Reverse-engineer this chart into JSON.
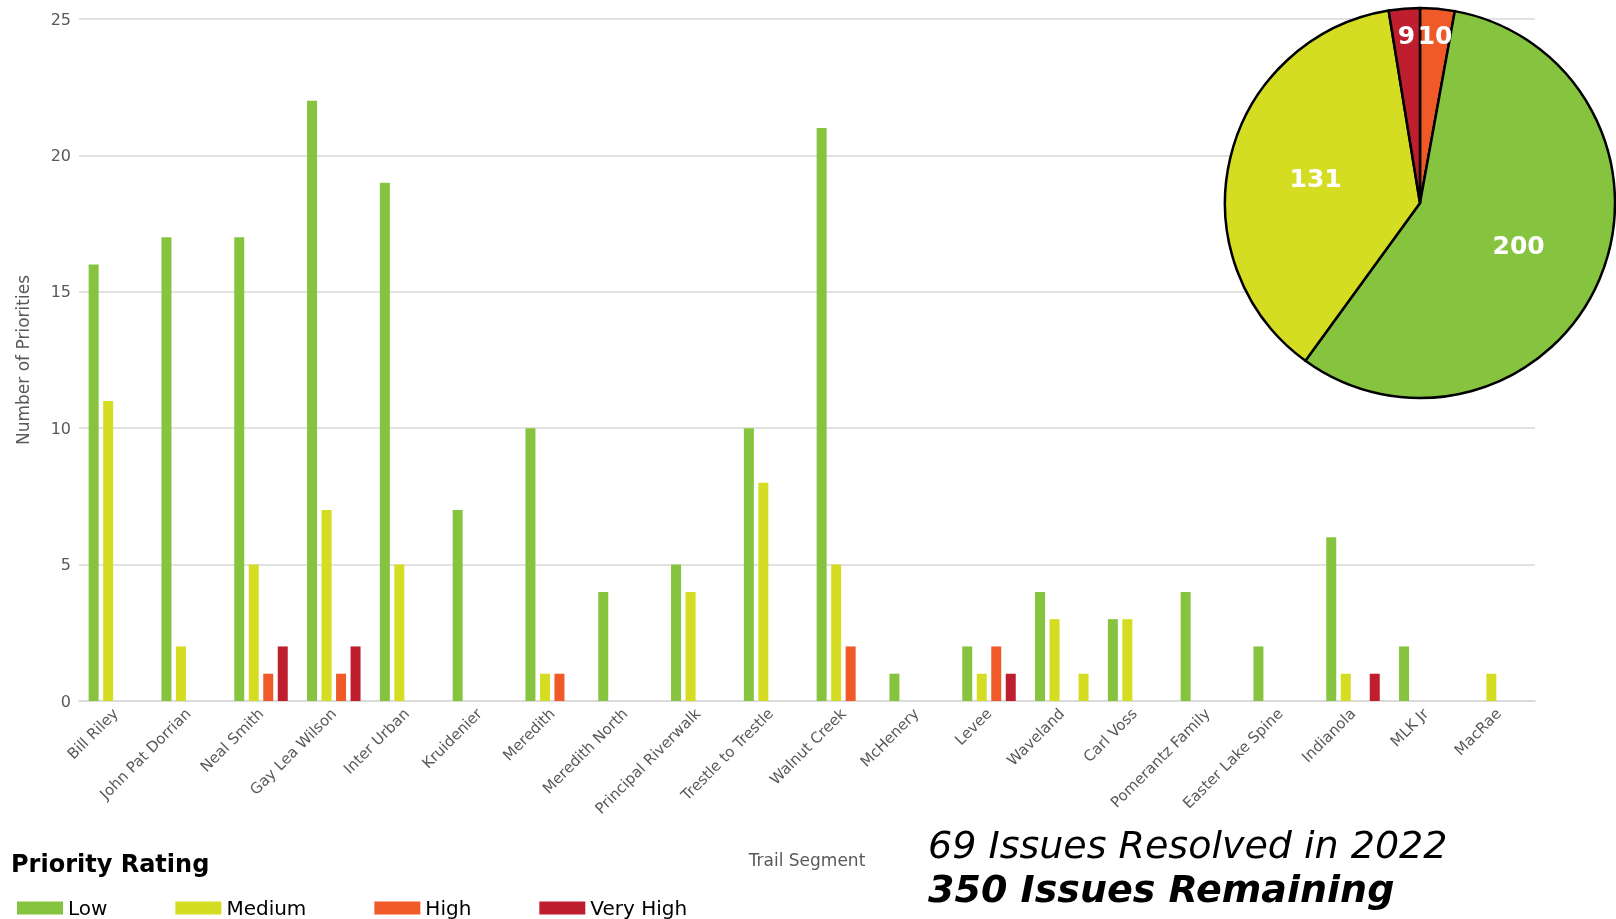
{
  "chart_data": [
    {
      "type": "bar",
      "xlabel": "Trail Segment",
      "ylabel": "Number of Priorities",
      "legend_title": "Priority Rating",
      "legend": "bottom left",
      "grid": "y",
      "ylim": [
        0,
        25
      ],
      "yticks": [
        0,
        5,
        10,
        15,
        20,
        25
      ],
      "categories": [
        "Bill Riley",
        "John Pat Dorrian",
        "Neal Smith",
        "Gay Lea Wilson",
        "Inter Urban",
        "Kruidenier",
        "Meredith",
        "Meredith North",
        "Principal Riverwalk",
        "Trestle to Trestle",
        "Walnut Creek",
        "McHenery",
        "Levee",
        "Waveland",
        "Carl Voss",
        "Pomerantz Family",
        "Easter Lake Spine",
        "Indianola",
        "MLK Jr",
        "MacRae"
      ],
      "series": [
        {
          "name": "Low",
          "color": "#86c440",
          "values": [
            16,
            17,
            17,
            22,
            19,
            7,
            10,
            4,
            5,
            10,
            21,
            1,
            2,
            4,
            3,
            4,
            2,
            6,
            2,
            0
          ]
        },
        {
          "name": "Medium",
          "color": "#d5dd23",
          "values": [
            11,
            2,
            5,
            7,
            5,
            0,
            1,
            0,
            4,
            8,
            5,
            0,
            1,
            3,
            3,
            0,
            0,
            1,
            0,
            1
          ]
        },
        {
          "name": "High",
          "color": "#f05a28",
          "values": [
            0,
            0,
            1,
            1,
            0,
            0,
            1,
            0,
            0,
            0,
            2,
            0,
            2,
            0,
            0,
            0,
            0,
            0,
            0,
            0
          ]
        },
        {
          "name": "Very High",
          "color": "#be1e2d",
          "values": [
            0,
            0,
            2,
            2,
            0,
            0,
            0,
            0,
            0,
            0,
            0,
            0,
            1,
            1,
            0,
            0,
            0,
            1,
            0,
            0
          ],
          "colors": [
            "#be1e2d",
            "#be1e2d",
            "#be1e2d",
            "#be1e2d",
            "#be1e2d",
            "#be1e2d",
            "#be1e2d",
            "#be1e2d",
            "#be1e2d",
            "#be1e2d",
            "#be1e2d",
            "#be1e2d",
            "#be1e2d",
            "#d5dd23",
            "#be1e2d",
            "#be1e2d",
            "#be1e2d",
            "#be1e2d",
            "#be1e2d",
            "#be1e2d"
          ]
        }
      ]
    },
    {
      "type": "pie",
      "categories": [
        null,
        null,
        null,
        null
      ],
      "values": [
        10,
        200,
        131,
        9
      ],
      "colors": [
        "#f05a28",
        "#86c440",
        "#d5dd23",
        "#be1e2d"
      ],
      "data_labels": true,
      "annotations": [
        "69 Issues Resolved in 2022",
        "350 Issues Remaining"
      ]
    }
  ]
}
